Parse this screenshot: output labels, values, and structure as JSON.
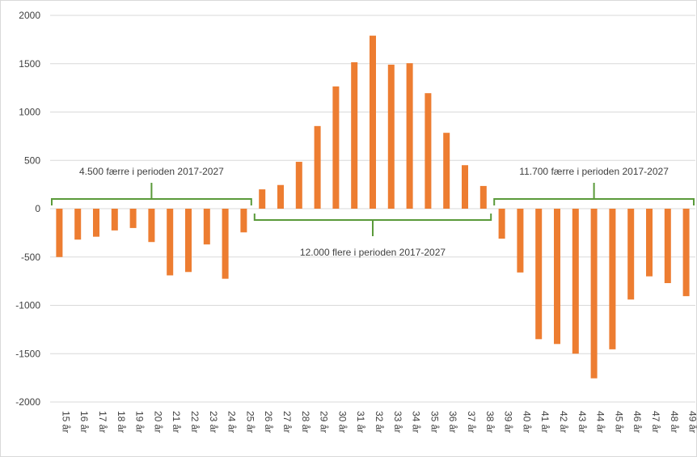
{
  "chart_data": {
    "type": "bar",
    "categories": [
      "15 år",
      "16 år",
      "17 år",
      "18 år",
      "19 år",
      "20 år",
      "21 år",
      "22 år",
      "23 år",
      "24 år",
      "25 år",
      "26 år",
      "27 år",
      "28 år",
      "29 år",
      "30 år",
      "31 år",
      "32 år",
      "33 år",
      "34 år",
      "35 år",
      "36 år",
      "37 år",
      "38 år",
      "39 år",
      "40 år",
      "41 år",
      "42 år",
      "43 år",
      "44 år",
      "45 år",
      "46 år",
      "47 år",
      "48 år",
      "49 år"
    ],
    "values": [
      -500,
      -320,
      -290,
      -225,
      -200,
      -345,
      -690,
      -655,
      -370,
      -725,
      -245,
      200,
      245,
      485,
      855,
      1265,
      1515,
      1790,
      1490,
      1505,
      1195,
      785,
      450,
      235,
      -310,
      -660,
      -1350,
      -1400,
      -1500,
      -1755,
      -1455,
      -940,
      -700,
      -770,
      -905
    ],
    "color": "#ed7d31",
    "ylim": [
      -2000,
      2000
    ],
    "yticks": [
      -2000,
      -1500,
      -1000,
      -500,
      0,
      500,
      1000,
      1500,
      2000
    ],
    "grid": true,
    "annotations": [
      "4.500 færre i perioden 2017-2027",
      "12.000 flere i perioden 2017-2027",
      "11.700 færre i perioden 2017-2027"
    ],
    "annotation_color": "#5a9a3a"
  }
}
